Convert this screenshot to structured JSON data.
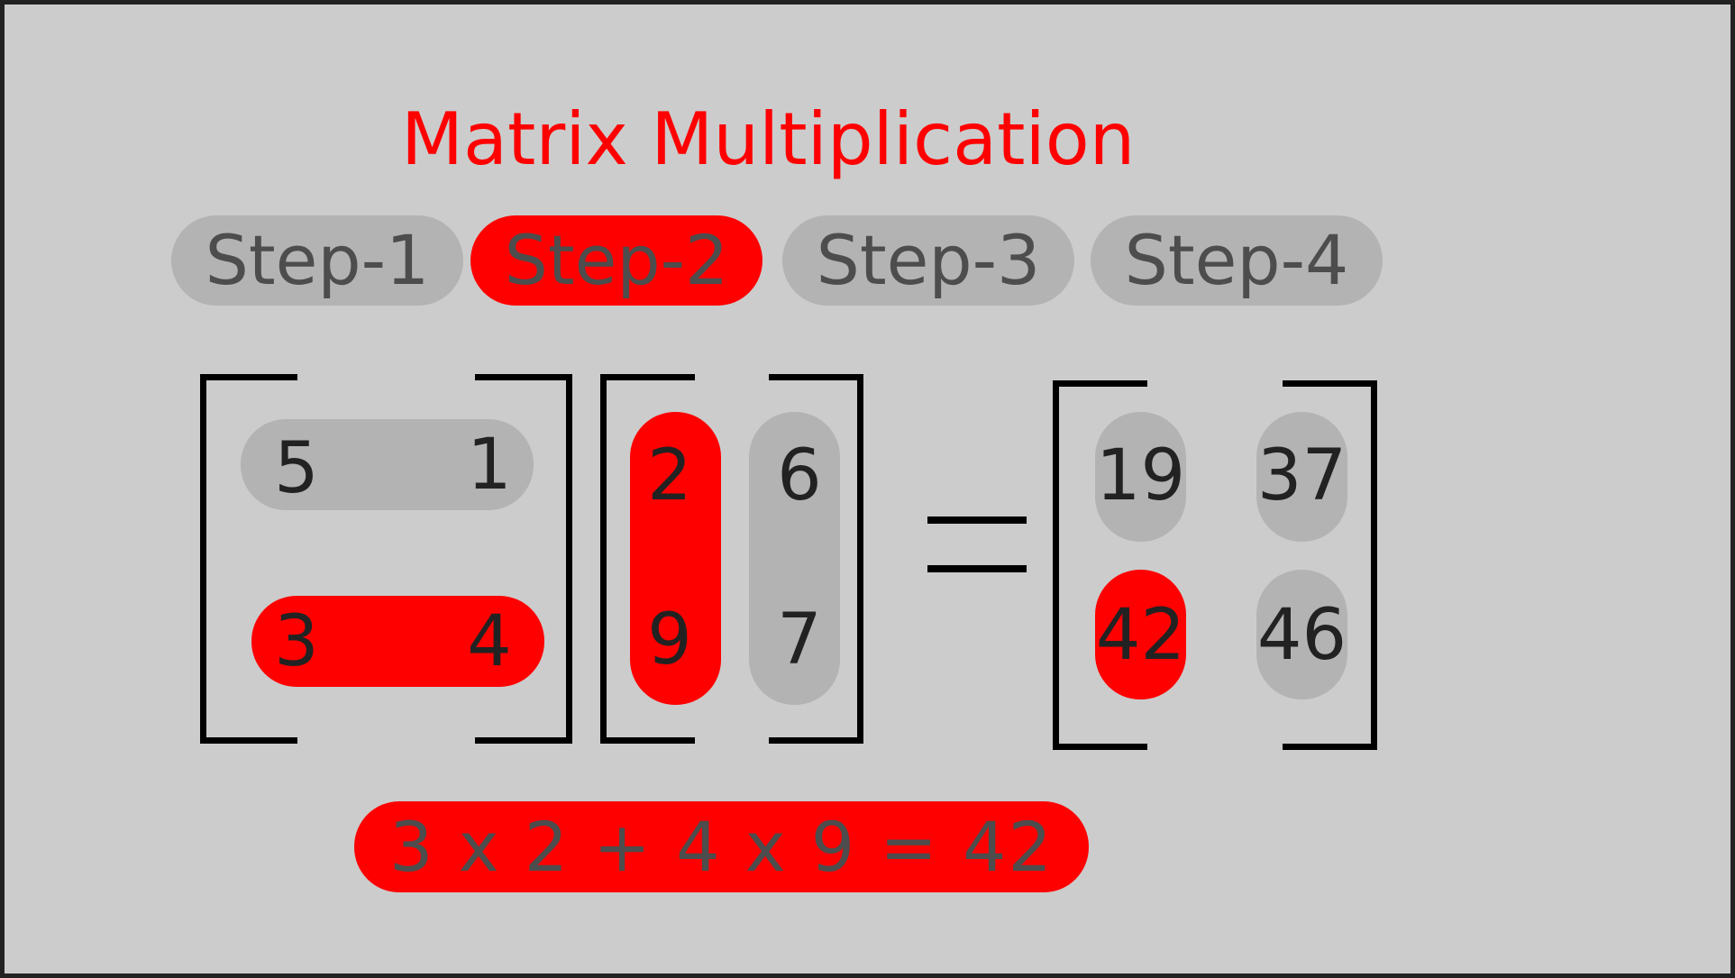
{
  "title": "Matrix Multiplication",
  "steps": [
    "Step-1",
    "Step-2",
    "Step-3",
    "Step-4"
  ],
  "active_step": "Step-2",
  "matrix_a": [
    [
      "5",
      "1"
    ],
    [
      "3",
      "4"
    ]
  ],
  "matrix_b": [
    [
      "2",
      "6"
    ],
    [
      "9",
      "7"
    ]
  ],
  "result": [
    [
      "19",
      "37"
    ],
    [
      "42",
      "46"
    ]
  ],
  "equals": "=",
  "formula": "3 x 2 + 4 x 9 = 42",
  "colors": {
    "background": "#cccccc",
    "highlight": "#ff0000",
    "pill": "#b3b3b3",
    "button_text": "#4d4d4d"
  }
}
